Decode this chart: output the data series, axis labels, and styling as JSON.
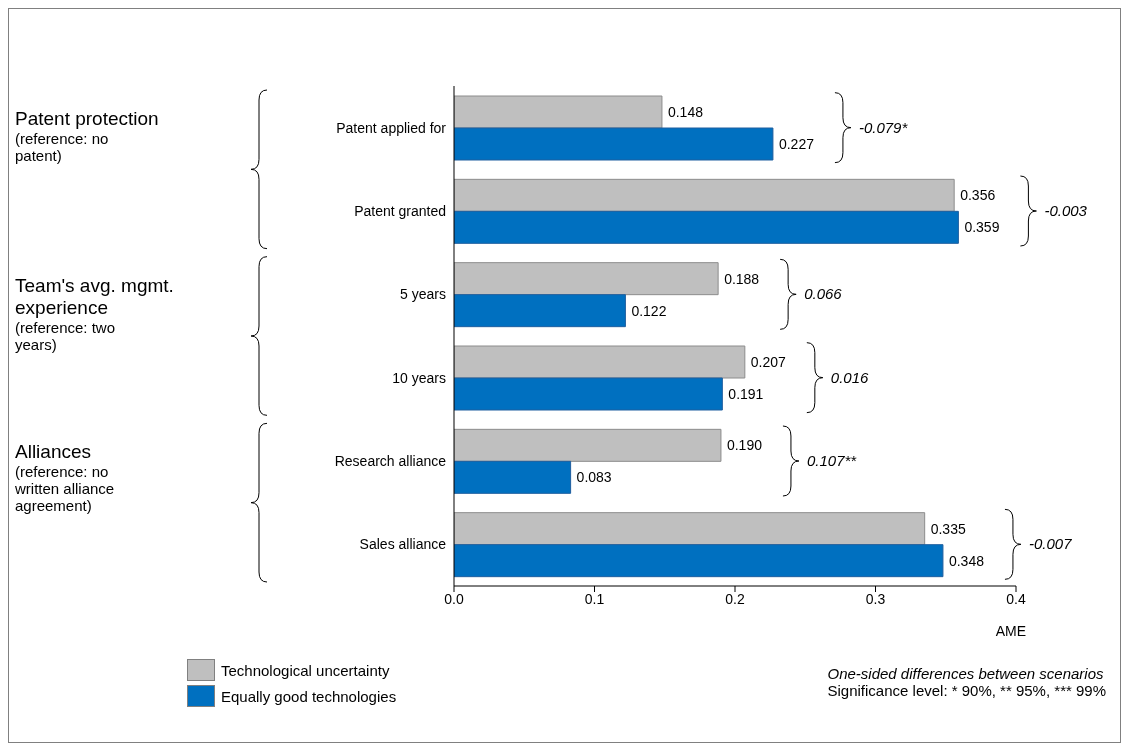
{
  "chart_data": {
    "type": "bar",
    "orientation": "horizontal",
    "categories": [
      "Patent applied for",
      "Patent granted",
      "5 years",
      "10 years",
      "Research alliance",
      "Sales alliance"
    ],
    "series": [
      {
        "name": "Technological uncertainty",
        "color": "#bfbfbf",
        "values": [
          0.148,
          0.356,
          0.188,
          0.207,
          0.19,
          0.335
        ],
        "value_labels": [
          "0.148",
          "0.356",
          "0.188",
          "0.207",
          "0.190",
          "0.335"
        ]
      },
      {
        "name": "Equally good technologies",
        "color": "#0070c0",
        "values": [
          0.227,
          0.359,
          0.122,
          0.191,
          0.083,
          0.348
        ],
        "value_labels": [
          "0.227",
          "0.359",
          "0.122",
          "0.191",
          "0.083",
          "0.348"
        ]
      }
    ],
    "xlim": [
      0,
      0.4
    ],
    "xticks": [
      {
        "value": 0,
        "label": "0.0"
      },
      {
        "value": 0.1,
        "label": "0.1"
      },
      {
        "value": 0.2,
        "label": "0.2"
      },
      {
        "value": 0.3,
        "label": "0.3"
      },
      {
        "value": 0.4,
        "label": "0.4"
      }
    ],
    "xlabel": "AME",
    "legend": "bottom left",
    "annotations": [
      "Patent protection",
      "(reference: no patent)",
      "Team's avg. mgmt. experience",
      "(reference: two years)",
      "Alliances",
      "(reference: no written alliance agreement)",
      "One-sided differences between scenarios",
      "Significance level: * 90%, ** 95%, *** 99%",
      "-0.079*",
      "-0.003",
      "0.066",
      "0.016",
      "0.107**",
      "-0.007"
    ]
  }
}
